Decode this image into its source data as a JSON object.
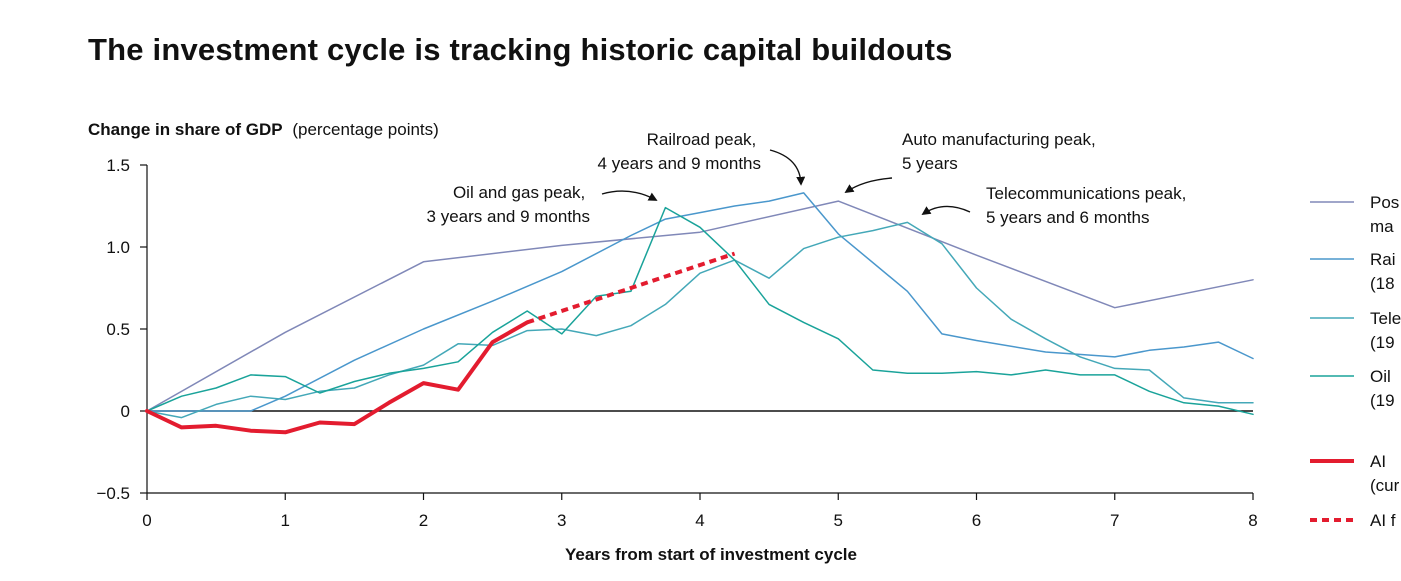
{
  "chart_data": {
    "type": "line",
    "title": "The investment cycle is tracking historic capital buildouts",
    "ylabel_bold": "Change in share of GDP",
    "ylabel_rest": "(percentage points)",
    "xlabel": "Years from start of investment cycle",
    "xlim": [
      0,
      8
    ],
    "ylim": [
      -0.5,
      1.5
    ],
    "x_ticks": [
      0,
      1,
      2,
      3,
      4,
      5,
      6,
      7,
      8
    ],
    "y_ticks": [
      {
        "value": -0.5,
        "label": "−0.5"
      },
      {
        "value": 0,
        "label": "0"
      },
      {
        "value": 0.5,
        "label": "0.5"
      },
      {
        "value": 1.0,
        "label": "1.0"
      },
      {
        "value": 1.5,
        "label": "1.5"
      }
    ],
    "grid": false,
    "legend_position": "right",
    "series": [
      {
        "legend_lines": [
          "Pos",
          "ma"
        ],
        "color": "#8088b8",
        "width": 1.5,
        "style": "solid",
        "points": [
          [
            0,
            0
          ],
          [
            1,
            0.48
          ],
          [
            2,
            0.91
          ],
          [
            3,
            1.01
          ],
          [
            4,
            1.09
          ],
          [
            5,
            1.28
          ],
          [
            6,
            0.95
          ],
          [
            7,
            0.63
          ],
          [
            8,
            0.8
          ]
        ]
      },
      {
        "legend_lines": [
          "Rai",
          "(18"
        ],
        "color": "#4a97cc",
        "width": 1.5,
        "style": "solid",
        "points": [
          [
            0,
            0
          ],
          [
            0.25,
            0
          ],
          [
            0.5,
            0
          ],
          [
            0.75,
            0
          ],
          [
            1,
            0.09
          ],
          [
            1.5,
            0.31
          ],
          [
            2,
            0.5
          ],
          [
            2.5,
            0.67
          ],
          [
            3,
            0.85
          ],
          [
            3.5,
            1.07
          ],
          [
            3.75,
            1.17
          ],
          [
            4,
            1.21
          ],
          [
            4.25,
            1.25
          ],
          [
            4.5,
            1.28
          ],
          [
            4.75,
            1.33
          ],
          [
            5,
            1.08
          ],
          [
            5.5,
            0.73
          ],
          [
            5.75,
            0.47
          ],
          [
            6,
            0.43
          ],
          [
            6.5,
            0.36
          ],
          [
            7,
            0.33
          ],
          [
            7.25,
            0.37
          ],
          [
            7.5,
            0.39
          ],
          [
            7.75,
            0.42
          ],
          [
            8,
            0.32
          ]
        ]
      },
      {
        "legend_lines": [
          "Tele",
          "(19"
        ],
        "color": "#44a8b8",
        "width": 1.5,
        "style": "solid",
        "points": [
          [
            0,
            0
          ],
          [
            0.25,
            -0.04
          ],
          [
            0.5,
            0.04
          ],
          [
            0.75,
            0.09
          ],
          [
            1,
            0.07
          ],
          [
            1.25,
            0.12
          ],
          [
            1.5,
            0.14
          ],
          [
            1.75,
            0.22
          ],
          [
            2,
            0.28
          ],
          [
            2.25,
            0.41
          ],
          [
            2.5,
            0.4
          ],
          [
            2.75,
            0.49
          ],
          [
            3,
            0.5
          ],
          [
            3.25,
            0.46
          ],
          [
            3.5,
            0.52
          ],
          [
            3.75,
            0.65
          ],
          [
            4,
            0.84
          ],
          [
            4.25,
            0.92
          ],
          [
            4.5,
            0.81
          ],
          [
            4.75,
            0.99
          ],
          [
            5,
            1.06
          ],
          [
            5.25,
            1.1
          ],
          [
            5.5,
            1.15
          ],
          [
            5.75,
            1.02
          ],
          [
            6,
            0.75
          ],
          [
            6.25,
            0.56
          ],
          [
            6.5,
            0.44
          ],
          [
            6.75,
            0.33
          ],
          [
            7,
            0.26
          ],
          [
            7.25,
            0.25
          ],
          [
            7.5,
            0.08
          ],
          [
            7.75,
            0.05
          ],
          [
            8,
            0.05
          ]
        ]
      },
      {
        "legend_lines": [
          "Oil",
          "(19"
        ],
        "color": "#1aa39a",
        "width": 1.5,
        "style": "solid",
        "points": [
          [
            0,
            0
          ],
          [
            0.25,
            0.09
          ],
          [
            0.5,
            0.14
          ],
          [
            0.75,
            0.22
          ],
          [
            1,
            0.21
          ],
          [
            1.25,
            0.11
          ],
          [
            1.5,
            0.18
          ],
          [
            1.75,
            0.23
          ],
          [
            2,
            0.26
          ],
          [
            2.25,
            0.3
          ],
          [
            2.5,
            0.48
          ],
          [
            2.75,
            0.61
          ],
          [
            3,
            0.47
          ],
          [
            3.25,
            0.7
          ],
          [
            3.5,
            0.73
          ],
          [
            3.75,
            1.24
          ],
          [
            4,
            1.12
          ],
          [
            4.25,
            0.92
          ],
          [
            4.5,
            0.65
          ],
          [
            4.75,
            0.54
          ],
          [
            5,
            0.44
          ],
          [
            5.25,
            0.25
          ],
          [
            5.5,
            0.23
          ],
          [
            5.75,
            0.23
          ],
          [
            6,
            0.24
          ],
          [
            6.25,
            0.22
          ],
          [
            6.5,
            0.25
          ],
          [
            6.75,
            0.22
          ],
          [
            7,
            0.22
          ],
          [
            7.25,
            0.12
          ],
          [
            7.5,
            0.05
          ],
          [
            7.75,
            0.03
          ],
          [
            8,
            -0.02
          ]
        ]
      },
      {
        "legend_lines": [
          "AI",
          "(cur"
        ],
        "color": "#e31c2f",
        "width": 4,
        "style": "solid",
        "points": [
          [
            0,
            0
          ],
          [
            0.25,
            -0.1
          ],
          [
            0.5,
            -0.09
          ],
          [
            0.75,
            -0.12
          ],
          [
            1,
            -0.13
          ],
          [
            1.25,
            -0.07
          ],
          [
            1.5,
            -0.08
          ],
          [
            1.75,
            0.05
          ],
          [
            2,
            0.17
          ],
          [
            2.25,
            0.13
          ],
          [
            2.5,
            0.42
          ],
          [
            2.75,
            0.54
          ]
        ]
      },
      {
        "legend_lines": [
          "AI f"
        ],
        "color": "#e31c2f",
        "width": 4,
        "style": "dashed",
        "points": [
          [
            2.75,
            0.54
          ],
          [
            3.25,
            0.68
          ],
          [
            3.75,
            0.82
          ],
          [
            4.25,
            0.96
          ]
        ]
      }
    ],
    "annotations": [
      {
        "lines": [
          "Railroad peak,",
          "4 years and 9 months"
        ]
      },
      {
        "lines": [
          "Auto manufacturing peak,",
          "5 years"
        ]
      },
      {
        "lines": [
          "Oil and gas peak,",
          "3 years and 9 months"
        ]
      },
      {
        "lines": [
          "Telecommunications peak,",
          "5 years and 6 months"
        ]
      }
    ]
  }
}
